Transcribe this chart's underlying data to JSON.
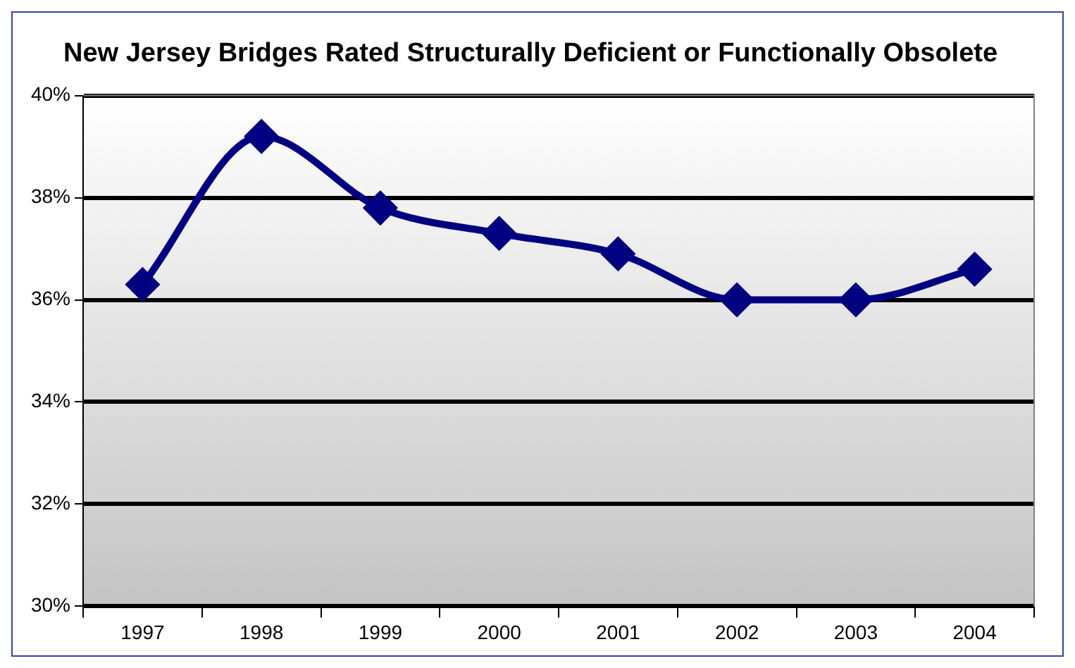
{
  "chart_data": {
    "type": "line",
    "title": "New Jersey Bridges Rated Structurally Deficient or Functionally Obsolete",
    "categories": [
      "1997",
      "1998",
      "1999",
      "2000",
      "2001",
      "2002",
      "2003",
      "2004"
    ],
    "series": [
      {
        "color": "#000080",
        "values": [
          36.3,
          39.2,
          37.8,
          37.3,
          36.9,
          36.0,
          36.0,
          36.6
        ]
      }
    ],
    "ylim": [
      30,
      40
    ],
    "yticks": [
      {
        "value": 30,
        "label": "30%"
      },
      {
        "value": 32,
        "label": "32%"
      },
      {
        "value": 34,
        "label": "34%"
      },
      {
        "value": 36,
        "label": "36%"
      },
      {
        "value": 38,
        "label": "38%"
      },
      {
        "value": 40,
        "label": "40%"
      }
    ],
    "grid": "y",
    "marker": "diamond",
    "legend": false
  }
}
